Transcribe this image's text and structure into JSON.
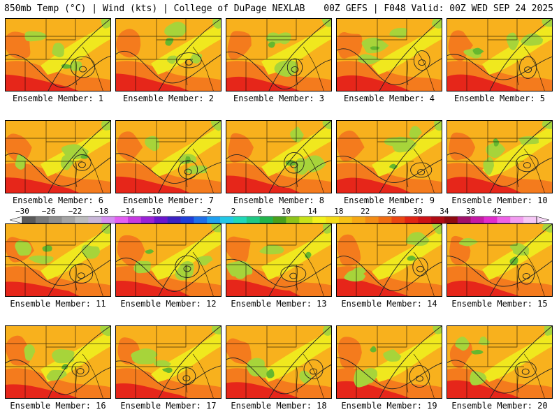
{
  "header": {
    "left": "850mb Temp (°C) | Wind (kts) | College of DuPage NEXLAB",
    "right": "00Z GEFS | F048 Valid: 00Z WED SEP 24 2025"
  },
  "members": [
    "Ensemble Member: 1",
    "Ensemble Member: 2",
    "Ensemble Member: 3",
    "Ensemble Member: 4",
    "Ensemble Member: 5",
    "Ensemble Member: 6",
    "Ensemble Member: 7",
    "Ensemble Member: 8",
    "Ensemble Member: 9",
    "Ensemble Member: 10",
    "Ensemble Member: 11",
    "Ensemble Member: 12",
    "Ensemble Member: 13",
    "Ensemble Member: 14",
    "Ensemble Member: 15",
    "Ensemble Member: 16",
    "Ensemble Member: 17",
    "Ensemble Member: 18",
    "Ensemble Member: 19",
    "Ensemble Member: 20"
  ],
  "colorbar": {
    "tick_labels": [
      "−30",
      "−26",
      "−22",
      "−18",
      "−14",
      "−10",
      "−6",
      "−2",
      "2",
      "6",
      "10",
      "14",
      "18",
      "22",
      "26",
      "30",
      "34",
      "38",
      "42"
    ],
    "colors": [
      "#5a5a5a",
      "#7a7a7a",
      "#8e8e8e",
      "#a4a4a4",
      "#bcbcbc",
      "#c9b7d9",
      "#d48ef0",
      "#e35ff2",
      "#c63ae0",
      "#9a22d6",
      "#6a16cc",
      "#3b22c2",
      "#1f3fd8",
      "#1f6fe8",
      "#1fa0f0",
      "#22c8e6",
      "#20d8b8",
      "#1fc884",
      "#22b44c",
      "#4aa01c",
      "#8ec41a",
      "#c8e21a",
      "#f2f21c",
      "#f5dc18",
      "#f6c216",
      "#f6a814",
      "#f38c14",
      "#f06c12",
      "#ea4612",
      "#e02414",
      "#cc1216",
      "#b00c14",
      "#8e0a10",
      "#a0106a",
      "#c41aa4",
      "#e02ccc",
      "#ee62e6",
      "#f29cf0",
      "#f6c8f6"
    ]
  },
  "palette": {
    "hot": "#e6261a",
    "warm": "#f47b1d",
    "mild": "#f8b11d",
    "cool": "#f0e81e",
    "cold": "#a7d43a",
    "coldest": "#66b72e"
  }
}
